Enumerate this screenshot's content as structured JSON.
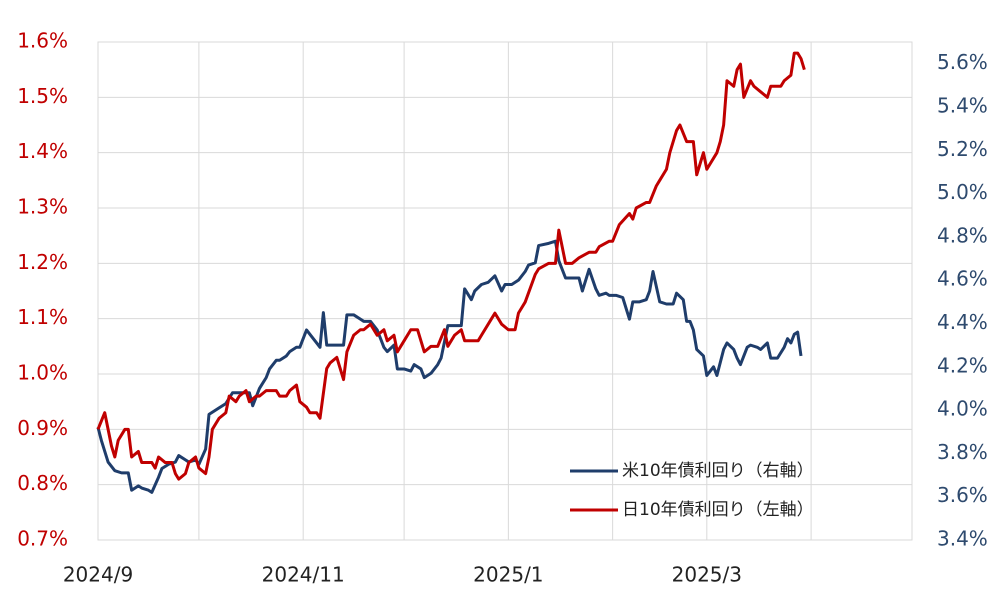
{
  "chart_data": {
    "type": "line",
    "xlim": [
      0,
      242
    ],
    "xticks": [
      {
        "value": 0,
        "label": "2024/9"
      },
      {
        "value": 61,
        "label": "2024/11"
      },
      {
        "value": 122,
        "label": "2025/1"
      },
      {
        "value": 181,
        "label": "2025/3"
      }
    ],
    "xminor": [
      30,
      91,
      153,
      212
    ],
    "ylim": [
      0.7,
      1.6
    ],
    "yticks": [
      {
        "value": 0.7,
        "label": "0.7%"
      },
      {
        "value": 0.8,
        "label": "0.8%"
      },
      {
        "value": 0.9,
        "label": "0.9%"
      },
      {
        "value": 1.0,
        "label": "1.0%"
      },
      {
        "value": 1.1,
        "label": "1.1%"
      },
      {
        "value": 1.2,
        "label": "1.2%"
      },
      {
        "value": 1.3,
        "label": "1.3%"
      },
      {
        "value": 1.4,
        "label": "1.4%"
      },
      {
        "value": 1.5,
        "label": "1.5%"
      },
      {
        "value": 1.6,
        "label": "1.6%"
      }
    ],
    "y2lim": [
      3.4,
      5.7
    ],
    "y2ticks": [
      {
        "value": 3.4,
        "label": "3.4%"
      },
      {
        "value": 3.6,
        "label": "3.6%"
      },
      {
        "value": 3.8,
        "label": "3.8%"
      },
      {
        "value": 4.0,
        "label": "4.0%"
      },
      {
        "value": 4.2,
        "label": "4.2%"
      },
      {
        "value": 4.4,
        "label": "4.4%"
      },
      {
        "value": 4.6,
        "label": "4.6%"
      },
      {
        "value": 4.8,
        "label": "4.8%"
      },
      {
        "value": 5.0,
        "label": "5.0%"
      },
      {
        "value": 5.2,
        "label": "5.2%"
      },
      {
        "value": 5.4,
        "label": "5.4%"
      },
      {
        "value": 5.6,
        "label": "5.6%"
      }
    ],
    "ycolor": "#c00000",
    "y2color": "#2e4a6e",
    "grid": true,
    "legend": "lower right",
    "series": [
      {
        "name": "米10年債利回り（右軸）",
        "color": "#1f3d6b",
        "axis": "y2",
        "x": [
          0,
          1,
          3,
          5,
          7,
          9,
          10,
          12,
          13,
          15,
          16,
          18,
          19,
          21,
          23,
          24,
          26,
          27,
          29,
          30,
          32,
          33,
          36,
          38,
          40,
          42,
          45,
          46,
          48,
          50,
          51,
          53,
          54,
          56,
          57,
          59,
          60,
          62,
          63,
          65,
          66,
          67,
          68,
          71,
          73,
          74,
          76,
          78,
          79,
          81,
          83,
          85,
          86,
          88,
          89,
          91,
          93,
          94,
          96,
          97,
          99,
          101,
          102,
          104,
          106,
          108,
          109,
          111,
          112,
          114,
          116,
          118,
          120,
          121,
          123,
          125,
          127,
          128,
          130,
          131,
          134,
          136,
          137,
          139,
          141,
          143,
          144,
          146,
          148,
          149,
          151,
          152,
          154,
          156,
          158,
          159,
          161,
          163,
          164,
          165,
          167,
          169,
          171,
          172,
          174,
          175,
          176,
          177,
          178,
          180,
          181,
          183,
          184,
          186,
          187,
          189,
          190,
          191,
          193,
          194,
          196,
          197,
          199,
          200,
          202,
          204,
          205,
          206,
          207,
          208,
          209
        ],
        "values": [
          3.92,
          3.86,
          3.76,
          3.72,
          3.71,
          3.71,
          3.63,
          3.65,
          3.64,
          3.63,
          3.62,
          3.69,
          3.73,
          3.75,
          3.76,
          3.79,
          3.77,
          3.76,
          3.77,
          3.75,
          3.82,
          3.98,
          4.01,
          4.03,
          4.08,
          4.08,
          4.08,
          4.02,
          4.1,
          4.15,
          4.19,
          4.23,
          4.23,
          4.25,
          4.27,
          4.29,
          4.29,
          4.37,
          4.35,
          4.31,
          4.29,
          4.45,
          4.3,
          4.3,
          4.3,
          4.44,
          4.44,
          4.42,
          4.41,
          4.41,
          4.37,
          4.29,
          4.27,
          4.3,
          4.19,
          4.19,
          4.18,
          4.21,
          4.19,
          4.15,
          4.17,
          4.21,
          4.24,
          4.39,
          4.39,
          4.39,
          4.56,
          4.51,
          4.55,
          4.58,
          4.59,
          4.62,
          4.55,
          4.58,
          4.58,
          4.6,
          4.64,
          4.67,
          4.68,
          4.76,
          4.77,
          4.78,
          4.69,
          4.61,
          4.61,
          4.61,
          4.55,
          4.65,
          4.56,
          4.53,
          4.54,
          4.53,
          4.53,
          4.52,
          4.42,
          4.5,
          4.5,
          4.51,
          4.55,
          4.64,
          4.5,
          4.49,
          4.49,
          4.54,
          4.51,
          4.41,
          4.41,
          4.37,
          4.28,
          4.25,
          4.16,
          4.2,
          4.16,
          4.28,
          4.31,
          4.28,
          4.24,
          4.21,
          4.29,
          4.3,
          4.29,
          4.28,
          4.31,
          4.24,
          4.24,
          4.29,
          4.33,
          4.31,
          4.35,
          4.36,
          4.25
        ]
      },
      {
        "name": "日10年債利回り（左軸）",
        "color": "#c00000",
        "x": [
          0,
          2,
          4,
          5,
          6,
          8,
          9,
          10,
          12,
          13,
          14,
          16,
          17,
          18,
          20,
          22,
          23,
          24,
          26,
          27,
          29,
          30,
          32,
          33,
          34,
          36,
          38,
          39,
          41,
          42,
          44,
          45,
          47,
          48,
          50,
          51,
          53,
          54,
          56,
          57,
          59,
          60,
          62,
          63,
          65,
          66,
          68,
          69,
          71,
          73,
          74,
          76,
          78,
          79,
          81,
          83,
          85,
          86,
          88,
          89,
          91,
          93,
          95,
          97,
          99,
          101,
          103,
          104,
          106,
          108,
          109,
          111,
          113,
          114,
          117,
          118,
          120,
          122,
          124,
          125,
          127,
          130,
          131,
          134,
          136,
          137,
          139,
          141,
          143,
          146,
          148,
          149,
          152,
          153,
          155,
          158,
          159,
          160,
          163,
          164,
          166,
          167,
          169,
          170,
          172,
          173,
          175,
          177,
          178,
          180,
          181,
          184,
          185,
          186,
          187,
          189,
          190,
          191,
          192,
          194,
          195,
          197,
          199,
          200,
          203,
          204,
          206,
          207,
          208,
          209,
          210
        ],
        "values": [
          0.9,
          0.93,
          0.87,
          0.85,
          0.88,
          0.9,
          0.9,
          0.85,
          0.86,
          0.84,
          0.84,
          0.84,
          0.83,
          0.85,
          0.84,
          0.84,
          0.82,
          0.81,
          0.82,
          0.84,
          0.85,
          0.83,
          0.82,
          0.85,
          0.9,
          0.92,
          0.93,
          0.96,
          0.95,
          0.96,
          0.97,
          0.95,
          0.96,
          0.96,
          0.97,
          0.97,
          0.97,
          0.96,
          0.96,
          0.97,
          0.98,
          0.95,
          0.94,
          0.93,
          0.93,
          0.92,
          1.01,
          1.02,
          1.03,
          0.99,
          1.04,
          1.07,
          1.08,
          1.08,
          1.09,
          1.07,
          1.08,
          1.06,
          1.07,
          1.04,
          1.06,
          1.08,
          1.08,
          1.04,
          1.05,
          1.05,
          1.08,
          1.05,
          1.07,
          1.08,
          1.06,
          1.06,
          1.06,
          1.07,
          1.1,
          1.11,
          1.09,
          1.08,
          1.08,
          1.11,
          1.13,
          1.18,
          1.19,
          1.2,
          1.2,
          1.26,
          1.2,
          1.2,
          1.21,
          1.22,
          1.22,
          1.23,
          1.24,
          1.24,
          1.27,
          1.29,
          1.28,
          1.3,
          1.31,
          1.31,
          1.34,
          1.35,
          1.37,
          1.4,
          1.44,
          1.45,
          1.42,
          1.42,
          1.36,
          1.4,
          1.37,
          1.4,
          1.42,
          1.45,
          1.53,
          1.52,
          1.55,
          1.56,
          1.5,
          1.53,
          1.52,
          1.51,
          1.5,
          1.52,
          1.52,
          1.53,
          1.54,
          1.58,
          1.58,
          1.57,
          1.55
        ]
      }
    ]
  }
}
